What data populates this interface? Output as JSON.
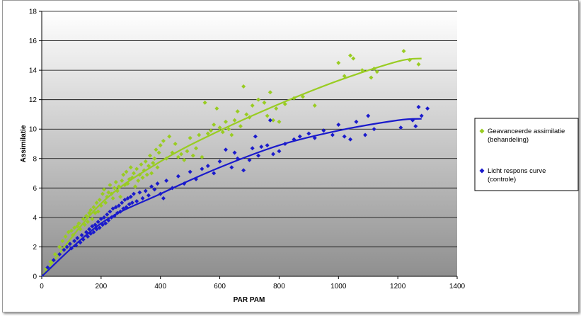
{
  "chart_data": {
    "type": "scatter",
    "xlabel": "PAR PAM",
    "ylabel": "Assimilatie",
    "xlim": [
      0,
      1400
    ],
    "ylim": [
      0,
      18
    ],
    "xticks": [
      "0",
      "200",
      "400",
      "600",
      "800",
      "1000",
      "1200",
      "1400"
    ],
    "yticks": [
      "0",
      "2",
      "4",
      "6",
      "8",
      "10",
      "12",
      "14",
      "16",
      "18"
    ],
    "grid": "horizontal",
    "legend_position": "right",
    "series": [
      {
        "name_lines": [
          "Geavanceerde assimilatie",
          "(behandeling)"
        ],
        "color": "#99cc22",
        "trend": {
          "x": [
            0,
            200,
            400,
            600,
            800,
            1000,
            1200,
            1280
          ],
          "y": [
            0,
            4.95,
            7.8,
            9.9,
            11.7,
            13.3,
            14.6,
            14.8
          ]
        },
        "points": [
          [
            15,
            0.5
          ],
          [
            30,
            1.0
          ],
          [
            45,
            1.5
          ],
          [
            60,
            2.0
          ],
          [
            70,
            2.4
          ],
          [
            80,
            2.7
          ],
          [
            90,
            3.0
          ],
          [
            100,
            3.1
          ],
          [
            105,
            2.8
          ],
          [
            110,
            3.3
          ],
          [
            120,
            3.4
          ],
          [
            125,
            3.6
          ],
          [
            130,
            3.2
          ],
          [
            140,
            3.9
          ],
          [
            145,
            3.5
          ],
          [
            150,
            4.1
          ],
          [
            155,
            3.7
          ],
          [
            160,
            4.3
          ],
          [
            165,
            4.5
          ],
          [
            170,
            3.9
          ],
          [
            175,
            4.7
          ],
          [
            180,
            4.3
          ],
          [
            185,
            5.0
          ],
          [
            190,
            4.4
          ],
          [
            195,
            5.2
          ],
          [
            200,
            4.8
          ],
          [
            205,
            5.6
          ],
          [
            210,
            5.9
          ],
          [
            215,
            5.0
          ],
          [
            220,
            5.4
          ],
          [
            225,
            5.7
          ],
          [
            230,
            6.2
          ],
          [
            235,
            5.6
          ],
          [
            240,
            5.3
          ],
          [
            245,
            6.0
          ],
          [
            250,
            6.4
          ],
          [
            255,
            5.8
          ],
          [
            260,
            6.1
          ],
          [
            265,
            5.4
          ],
          [
            270,
            6.5
          ],
          [
            275,
            6.9
          ],
          [
            280,
            6.2
          ],
          [
            285,
            7.1
          ],
          [
            290,
            6.3
          ],
          [
            295,
            6.6
          ],
          [
            300,
            7.4
          ],
          [
            305,
            6.7
          ],
          [
            310,
            7.0
          ],
          [
            315,
            6.1
          ],
          [
            320,
            7.3
          ],
          [
            325,
            6.5
          ],
          [
            330,
            6.9
          ],
          [
            335,
            7.6
          ],
          [
            340,
            6.7
          ],
          [
            345,
            7.2
          ],
          [
            350,
            7.8
          ],
          [
            355,
            6.9
          ],
          [
            360,
            7.5
          ],
          [
            365,
            8.2
          ],
          [
            370,
            7.0
          ],
          [
            375,
            7.7
          ],
          [
            380,
            8.0
          ],
          [
            385,
            8.6
          ],
          [
            390,
            7.4
          ],
          [
            395,
            8.4
          ],
          [
            400,
            8.9
          ],
          [
            410,
            9.2
          ],
          [
            420,
            8.0
          ],
          [
            430,
            9.5
          ],
          [
            440,
            8.4
          ],
          [
            450,
            9.0
          ],
          [
            460,
            8.1
          ],
          [
            470,
            8.3
          ],
          [
            480,
            7.9
          ],
          [
            490,
            8.5
          ],
          [
            500,
            9.4
          ],
          [
            510,
            8.2
          ],
          [
            520,
            8.7
          ],
          [
            530,
            9.6
          ],
          [
            540,
            8.1
          ],
          [
            550,
            11.8
          ],
          [
            560,
            9.7
          ],
          [
            570,
            9.9
          ],
          [
            580,
            10.3
          ],
          [
            590,
            11.4
          ],
          [
            600,
            10.1
          ],
          [
            610,
            9.8
          ],
          [
            620,
            10.5
          ],
          [
            630,
            10.0
          ],
          [
            640,
            9.6
          ],
          [
            650,
            10.6
          ],
          [
            660,
            11.2
          ],
          [
            670,
            10.2
          ],
          [
            680,
            12.9
          ],
          [
            690,
            11.0
          ],
          [
            700,
            10.8
          ],
          [
            710,
            11.6
          ],
          [
            730,
            12.0
          ],
          [
            750,
            11.8
          ],
          [
            760,
            10.9
          ],
          [
            770,
            12.5
          ],
          [
            780,
            10.6
          ],
          [
            790,
            11.4
          ],
          [
            800,
            10.5
          ],
          [
            820,
            11.7
          ],
          [
            850,
            12.1
          ],
          [
            880,
            12.2
          ],
          [
            920,
            11.6
          ],
          [
            1000,
            14.5
          ],
          [
            1020,
            13.6
          ],
          [
            1040,
            15.0
          ],
          [
            1050,
            14.8
          ],
          [
            1080,
            14.0
          ],
          [
            1110,
            13.5
          ],
          [
            1120,
            14.1
          ],
          [
            1130,
            13.9
          ],
          [
            1220,
            15.3
          ],
          [
            1240,
            14.7
          ],
          [
            1270,
            14.4
          ]
        ]
      },
      {
        "name_lines": [
          "Licht respons curve",
          "(controle)"
        ],
        "color": "#1a1acc",
        "trend": {
          "x": [
            0,
            200,
            400,
            600,
            800,
            1000,
            1200,
            1280
          ],
          "y": [
            0,
            3.6,
            5.6,
            7.4,
            8.9,
            9.9,
            10.6,
            10.7
          ]
        },
        "points": [
          [
            20,
            0.6
          ],
          [
            40,
            1.1
          ],
          [
            60,
            1.5
          ],
          [
            75,
            1.8
          ],
          [
            85,
            2.0
          ],
          [
            95,
            2.2
          ],
          [
            100,
            1.9
          ],
          [
            110,
            2.4
          ],
          [
            115,
            2.1
          ],
          [
            120,
            2.6
          ],
          [
            130,
            2.3
          ],
          [
            135,
            2.8
          ],
          [
            140,
            2.5
          ],
          [
            150,
            3.0
          ],
          [
            155,
            2.7
          ],
          [
            160,
            3.2
          ],
          [
            165,
            2.9
          ],
          [
            170,
            3.4
          ],
          [
            175,
            3.0
          ],
          [
            180,
            3.5
          ],
          [
            185,
            3.2
          ],
          [
            190,
            3.7
          ],
          [
            195,
            3.3
          ],
          [
            200,
            3.9
          ],
          [
            205,
            3.5
          ],
          [
            210,
            4.0
          ],
          [
            215,
            3.6
          ],
          [
            220,
            4.2
          ],
          [
            225,
            3.8
          ],
          [
            230,
            4.4
          ],
          [
            235,
            4.0
          ],
          [
            240,
            4.6
          ],
          [
            245,
            4.1
          ],
          [
            250,
            4.7
          ],
          [
            255,
            4.3
          ],
          [
            260,
            4.8
          ],
          [
            265,
            4.4
          ],
          [
            270,
            5.0
          ],
          [
            275,
            4.6
          ],
          [
            280,
            5.2
          ],
          [
            285,
            4.7
          ],
          [
            290,
            5.3
          ],
          [
            295,
            4.9
          ],
          [
            300,
            5.4
          ],
          [
            305,
            5.0
          ],
          [
            310,
            5.6
          ],
          [
            320,
            5.1
          ],
          [
            330,
            5.7
          ],
          [
            340,
            5.3
          ],
          [
            350,
            5.8
          ],
          [
            360,
            5.5
          ],
          [
            370,
            6.1
          ],
          [
            380,
            5.9
          ],
          [
            390,
            6.3
          ],
          [
            400,
            5.6
          ],
          [
            410,
            5.3
          ],
          [
            420,
            6.5
          ],
          [
            440,
            6.0
          ],
          [
            460,
            6.8
          ],
          [
            480,
            6.3
          ],
          [
            500,
            7.1
          ],
          [
            520,
            6.6
          ],
          [
            540,
            7.3
          ],
          [
            560,
            7.5
          ],
          [
            580,
            7.0
          ],
          [
            600,
            7.8
          ],
          [
            620,
            8.6
          ],
          [
            640,
            7.4
          ],
          [
            650,
            8.4
          ],
          [
            660,
            8.0
          ],
          [
            680,
            7.2
          ],
          [
            700,
            7.9
          ],
          [
            710,
            8.7
          ],
          [
            720,
            9.5
          ],
          [
            730,
            8.2
          ],
          [
            740,
            8.8
          ],
          [
            760,
            8.9
          ],
          [
            770,
            10.6
          ],
          [
            780,
            8.3
          ],
          [
            800,
            8.5
          ],
          [
            820,
            9.0
          ],
          [
            850,
            9.3
          ],
          [
            870,
            9.5
          ],
          [
            900,
            9.7
          ],
          [
            920,
            9.4
          ],
          [
            950,
            9.9
          ],
          [
            980,
            9.6
          ],
          [
            1000,
            10.3
          ],
          [
            1020,
            9.5
          ],
          [
            1040,
            9.3
          ],
          [
            1060,
            10.5
          ],
          [
            1090,
            9.6
          ],
          [
            1100,
            10.9
          ],
          [
            1120,
            10.0
          ],
          [
            1210,
            10.1
          ],
          [
            1250,
            10.6
          ],
          [
            1260,
            10.2
          ],
          [
            1270,
            11.5
          ],
          [
            1280,
            10.9
          ],
          [
            1300,
            11.4
          ]
        ]
      }
    ]
  }
}
